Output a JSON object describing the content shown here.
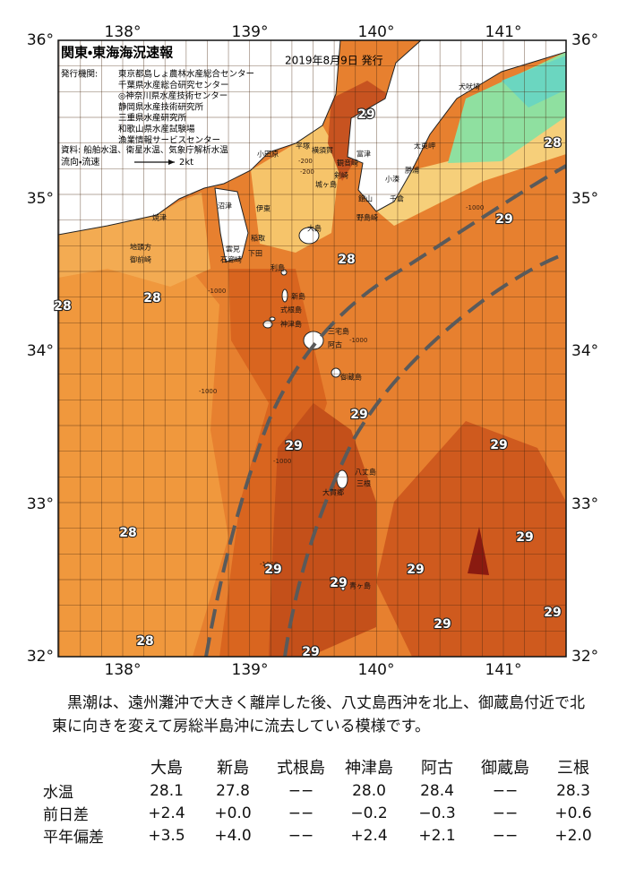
{
  "map": {
    "title": "関東・東海海況速報",
    "date": "2019年8月9日 発行",
    "issuer_label": "発行機関:",
    "issuers": [
      "東京都島しょ農林水産総合センター",
      "千葉県水産総合研究センター",
      "◎神奈川県水産技術センター",
      "静岡県水産技術研究所",
      "三重県水産研究所",
      "和歌山県水産試験場",
      "漁業情報サービスセンター"
    ],
    "sources": "資料: 船舶水温、衛星水温、気象庁解析水温",
    "flow_label": "流向・流速",
    "flow_scale": "2kt",
    "lon_labels": [
      "138°",
      "139°",
      "140°",
      "141°"
    ],
    "lat_labels": [
      "36°",
      "35°",
      "34°",
      "33°",
      "32°"
    ],
    "places": [
      "犬吠埼",
      "太東岬",
      "勝浦",
      "小湊",
      "千倉",
      "館山",
      "野島崎",
      "富津",
      "観音崎",
      "横須賀",
      "平塚",
      "小田原",
      "剣崎",
      "城ヶ島",
      "伊東",
      "稲取",
      "下田",
      "雲見",
      "石廊崎",
      "沼津",
      "焼津",
      "地頭方",
      "御前崎",
      "大島",
      "利島",
      "新島",
      "式根島",
      "神津島",
      "三宅島",
      "阿古",
      "御蔵島",
      "八丈島",
      "三根",
      "大賀郷",
      "青ヶ島"
    ],
    "temperature_labels": [
      29,
      28,
      29,
      28,
      28,
      28,
      29,
      29,
      29,
      28,
      29,
      29,
      29,
      29,
      29,
      29,
      28,
      29
    ],
    "depth_labels": [
      "-200",
      "-200",
      "-1000",
      "-1000",
      "-1000",
      "-1000",
      "-1000",
      "-1000"
    ]
  },
  "summary": "黒潮は、遠州灘沖で大きく離岸した後、八丈島西沖を北上、御蔵島付近で北東に向きを変えて房総半島沖に流去している模様です。",
  "table": {
    "columns": [
      "大島",
      "新島",
      "式根島",
      "神津島",
      "阿古",
      "御蔵島",
      "三根"
    ],
    "rows": [
      {
        "label": "水温",
        "values": [
          "28.1",
          "27.8",
          "−−",
          "28.0",
          "28.4",
          "−−",
          "28.3"
        ]
      },
      {
        "label": "前日差",
        "values": [
          "+2.4",
          "+0.0",
          "−−",
          "−0.2",
          "−0.3",
          "−−",
          "+0.6"
        ]
      },
      {
        "label": "平年偏差",
        "values": [
          "+3.5",
          "+4.0",
          "−−",
          "+2.4",
          "+2.1",
          "−−",
          "+2.0"
        ]
      }
    ]
  }
}
